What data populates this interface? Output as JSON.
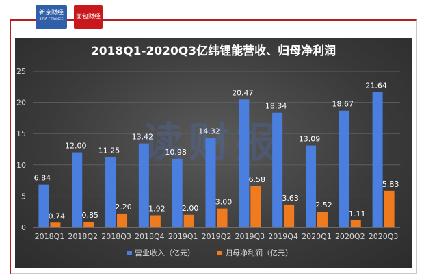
{
  "logos": {
    "left_main": "新京财经",
    "left_sub": "SINA FINANCE",
    "right": "面包财经"
  },
  "watermark": "读财报",
  "chart_data": {
    "type": "bar",
    "title": "2018Q1-2020Q3亿纬锂能营收、归母净利润",
    "categories": [
      "2018Q1",
      "2018Q2",
      "2018Q3",
      "2018Q4",
      "2019Q1",
      "2019Q2",
      "2019Q3",
      "2019Q4",
      "2020Q1",
      "2020Q2",
      "2020Q3"
    ],
    "series": [
      {
        "name": "营业收入（亿元）",
        "color": "#4a7fe0",
        "values": [
          6.84,
          12.0,
          11.25,
          13.42,
          10.98,
          14.32,
          20.47,
          18.34,
          13.09,
          18.67,
          21.64
        ],
        "labels": [
          "6.84",
          "12.00",
          "11.25",
          "13.42",
          "10.98",
          "14.32",
          "20.47",
          "18.34",
          "13.09",
          "18.67",
          "21.64"
        ]
      },
      {
        "name": "归母净利润（亿元）",
        "color": "#f07a1e",
        "values": [
          0.74,
          0.85,
          2.2,
          1.92,
          2.0,
          3.0,
          6.58,
          3.63,
          2.52,
          1.11,
          5.83
        ],
        "labels": [
          "0.74",
          "0.85",
          "2.20",
          "1.92",
          "2.00",
          "3.00",
          "6.58",
          "3.63",
          "2.52",
          "1.11",
          "5.83"
        ]
      }
    ],
    "ylim": [
      0,
      25
    ],
    "yticks": [
      "0",
      "5",
      "10",
      "15",
      "20",
      "25"
    ],
    "grid": true,
    "legend": "bottom"
  }
}
